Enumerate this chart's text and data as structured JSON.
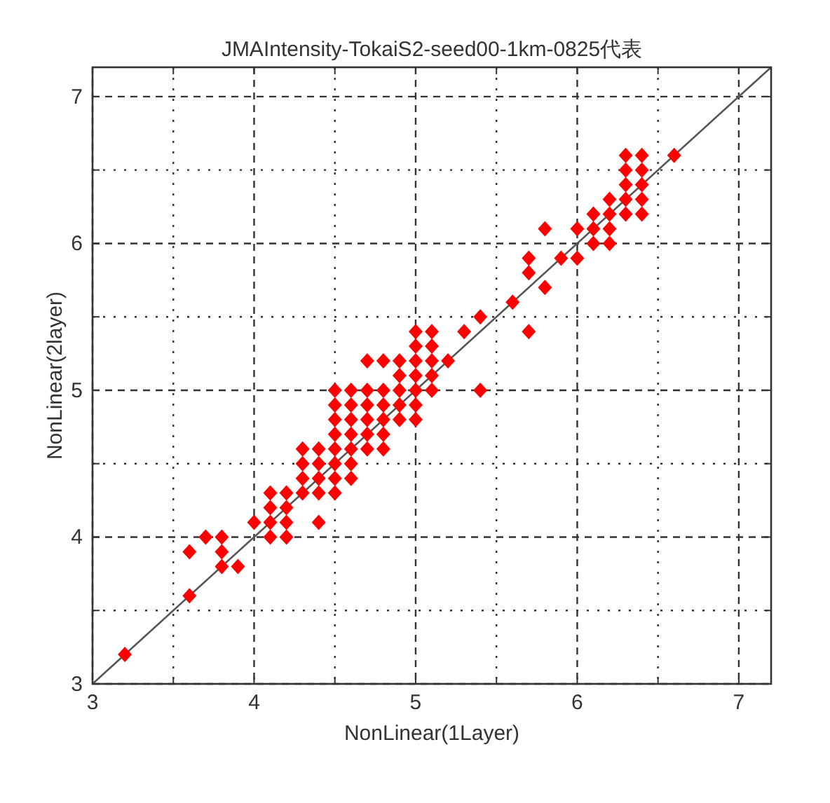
{
  "chart_data": {
    "type": "scatter",
    "title": "JMAIntensity-TokaiS2-seed00-1km-0825代表",
    "xlabel": "NonLinear(1Layer)",
    "ylabel": "NonLinear(2layer)",
    "xlim": [
      3,
      7.2
    ],
    "ylim": [
      3,
      7.2
    ],
    "xticks": [
      3,
      {
        "value": 3.5,
        "label": null
      },
      4,
      {
        "value": 4.5,
        "label": null
      },
      5,
      {
        "value": 5.5,
        "label": null
      },
      6,
      {
        "value": 6.5,
        "label": null
      },
      7
    ],
    "yticks": [
      3,
      {
        "value": 3.5,
        "label": null
      },
      4,
      {
        "value": 4.5,
        "label": null
      },
      5,
      {
        "value": 5.5,
        "label": null
      },
      6,
      {
        "value": 6.5,
        "label": null
      },
      7
    ],
    "grid": true,
    "series": [
      {
        "type": "line",
        "color": "#555555",
        "marker": "none",
        "line_style": "solid",
        "x": [
          3,
          7.2
        ],
        "values": [
          3,
          7.2
        ]
      },
      {
        "color": "#ff0000",
        "marker": "diamond",
        "x": [
          3.2,
          3.6,
          3.6,
          3.7,
          3.8,
          3.8,
          3.8,
          3.9,
          4.0,
          4.1,
          4.2,
          4.1,
          4.2,
          4.4,
          4.1,
          4.2,
          4.1,
          4.2,
          4.3,
          4.4,
          4.5,
          4.3,
          4.4,
          4.5,
          4.6,
          4.3,
          4.4,
          4.5,
          4.6,
          4.3,
          4.4,
          4.5,
          4.6,
          4.7,
          4.8,
          4.5,
          4.6,
          4.7,
          4.8,
          4.5,
          4.6,
          4.7,
          4.8,
          4.9,
          5.0,
          4.5,
          4.6,
          4.7,
          4.8,
          4.9,
          5.0,
          4.5,
          4.6,
          4.7,
          4.8,
          4.9,
          5.0,
          5.1,
          5.4,
          4.9,
          5.0,
          5.1,
          4.7,
          4.8,
          4.9,
          5.0,
          5.1,
          5.2,
          5.0,
          5.1,
          5.0,
          5.1,
          5.3,
          5.7,
          5.4,
          5.6,
          5.8,
          5.7,
          5.7,
          5.9,
          6.0,
          6.1,
          6.2,
          5.8,
          6.0,
          6.1,
          6.2,
          6.1,
          6.2,
          6.3,
          6.4,
          6.2,
          6.3,
          6.4,
          6.3,
          6.4,
          6.3,
          6.4,
          6.3,
          6.4,
          6.6
        ],
        "values": [
          3.2,
          3.6,
          3.9,
          4.0,
          4.0,
          3.9,
          3.8,
          3.8,
          4.1,
          4.0,
          4.0,
          4.1,
          4.1,
          4.1,
          4.2,
          4.2,
          4.3,
          4.3,
          4.3,
          4.3,
          4.3,
          4.4,
          4.4,
          4.4,
          4.4,
          4.5,
          4.5,
          4.5,
          4.5,
          4.6,
          4.6,
          4.6,
          4.6,
          4.6,
          4.6,
          4.7,
          4.7,
          4.7,
          4.7,
          4.8,
          4.8,
          4.8,
          4.8,
          4.8,
          4.8,
          4.9,
          4.9,
          4.9,
          4.9,
          4.9,
          4.9,
          5.0,
          5.0,
          5.0,
          5.0,
          5.0,
          5.0,
          5.0,
          5.0,
          5.1,
          5.1,
          5.1,
          5.2,
          5.2,
          5.2,
          5.2,
          5.2,
          5.2,
          5.3,
          5.3,
          5.4,
          5.4,
          5.4,
          5.4,
          5.5,
          5.6,
          5.7,
          5.8,
          5.9,
          5.9,
          5.9,
          6.0,
          6.0,
          6.1,
          6.1,
          6.1,
          6.1,
          6.2,
          6.2,
          6.2,
          6.2,
          6.3,
          6.3,
          6.3,
          6.4,
          6.4,
          6.5,
          6.5,
          6.6,
          6.6,
          6.6
        ]
      }
    ]
  }
}
